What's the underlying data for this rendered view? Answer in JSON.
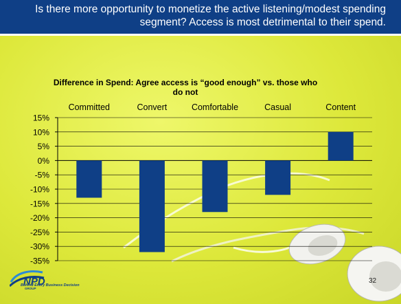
{
  "header": {
    "title": "Is there more opportunity to monetize the active listening/modest spending segment? Access is most detrimental to their spend."
  },
  "chart_data": {
    "type": "bar",
    "title": "Difference in Spend: Agree access is “good enough” vs. those who do not",
    "categories": [
      "Committed",
      "Convert",
      "Comfortable",
      "Casual",
      "Content"
    ],
    "values": [
      -13,
      -32,
      -18,
      -12,
      10
    ],
    "ylim": [
      -35,
      15
    ],
    "yticks": [
      15,
      10,
      5,
      0,
      -5,
      -10,
      -15,
      -20,
      -25,
      -30,
      -35
    ],
    "ytick_labels": [
      "15%",
      "10%",
      "5%",
      "0%",
      "-5%",
      "-10%",
      "-15%",
      "-20%",
      "-25%",
      "-30%",
      "-35%"
    ],
    "category_labels_position": "top",
    "grid": true,
    "legend": "none",
    "bar_color": "#0f3f86"
  },
  "footer": {
    "logo_text": "NPD",
    "logo_subtext": "GROUP",
    "tagline": "Behind Every Business Decision",
    "page_number": "32"
  },
  "colors": {
    "header_bg": "#0f3f86",
    "slide_bg": "#e1ea3c",
    "bar": "#0f3f86"
  }
}
